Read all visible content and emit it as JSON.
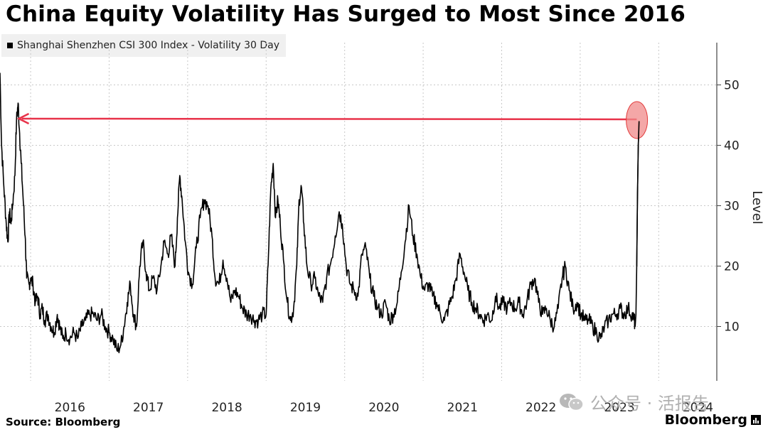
{
  "title": "China Equity Volatility Has Surged to Most Since 2016",
  "source": "Source: Bloomberg",
  "brand": "Bloomberg",
  "watermark": "公众号 · 活报告",
  "chart_data": {
    "type": "line",
    "title": "China Equity Volatility Has Surged to Most Since 2016",
    "ylabel": "Level",
    "ylim": [
      1,
      57
    ],
    "yticks": [
      10,
      20,
      30,
      40,
      50
    ],
    "xlim": [
      2015.61,
      2024.74
    ],
    "xticks": [
      "2016",
      "2017",
      "2018",
      "2019",
      "2020",
      "2021",
      "2022",
      "2023",
      "2024"
    ],
    "grid": true,
    "legend_position": "top-left",
    "series": [
      {
        "name": "Shanghai Shenzhen CSI 300 Index - Volatility 30 Day",
        "color": "#000000",
        "points": [
          [
            2015.61,
            52
          ],
          [
            2015.63,
            40
          ],
          [
            2015.66,
            33
          ],
          [
            2015.69,
            27
          ],
          [
            2015.71,
            24
          ],
          [
            2015.73,
            29
          ],
          [
            2015.75,
            27
          ],
          [
            2015.77,
            30
          ],
          [
            2015.8,
            35
          ],
          [
            2015.82,
            44
          ],
          [
            2015.84,
            47
          ],
          [
            2015.86,
            42
          ],
          [
            2015.88,
            37
          ],
          [
            2015.91,
            30
          ],
          [
            2015.93,
            25
          ],
          [
            2015.95,
            18
          ],
          [
            2015.98,
            17
          ],
          [
            2016.0,
            18
          ],
          [
            2016.03,
            17
          ],
          [
            2016.06,
            14
          ],
          [
            2016.09,
            15
          ],
          [
            2016.12,
            12
          ],
          [
            2016.15,
            13
          ],
          [
            2016.18,
            11
          ],
          [
            2016.22,
            12
          ],
          [
            2016.26,
            10
          ],
          [
            2016.3,
            9
          ],
          [
            2016.34,
            12
          ],
          [
            2016.37,
            10
          ],
          [
            2016.41,
            8
          ],
          [
            2016.45,
            9
          ],
          [
            2016.5,
            8
          ],
          [
            2016.55,
            9
          ],
          [
            2016.6,
            8
          ],
          [
            2016.65,
            10
          ],
          [
            2016.7,
            11
          ],
          [
            2016.75,
            12
          ],
          [
            2016.8,
            12
          ],
          [
            2016.85,
            11
          ],
          [
            2016.9,
            12
          ],
          [
            2016.95,
            10
          ],
          [
            2017.0,
            9
          ],
          [
            2017.05,
            8
          ],
          [
            2017.1,
            6
          ],
          [
            2017.15,
            7
          ],
          [
            2017.19,
            10
          ],
          [
            2017.23,
            14
          ],
          [
            2017.27,
            17
          ],
          [
            2017.31,
            12
          ],
          [
            2017.35,
            10
          ],
          [
            2017.39,
            20
          ],
          [
            2017.43,
            24
          ],
          [
            2017.47,
            19
          ],
          [
            2017.51,
            16
          ],
          [
            2017.56,
            18
          ],
          [
            2017.61,
            16
          ],
          [
            2017.66,
            20
          ],
          [
            2017.7,
            24
          ],
          [
            2017.75,
            22
          ],
          [
            2017.79,
            25
          ],
          [
            2017.84,
            20
          ],
          [
            2017.87,
            28
          ],
          [
            2017.9,
            35
          ],
          [
            2017.93,
            31
          ],
          [
            2017.97,
            24
          ],
          [
            2018.01,
            19
          ],
          [
            2018.06,
            17
          ],
          [
            2018.11,
            23
          ],
          [
            2018.16,
            28
          ],
          [
            2018.21,
            31
          ],
          [
            2018.26,
            30
          ],
          [
            2018.31,
            25
          ],
          [
            2018.35,
            18
          ],
          [
            2018.4,
            17
          ],
          [
            2018.45,
            21
          ],
          [
            2018.5,
            18
          ],
          [
            2018.55,
            14
          ],
          [
            2018.6,
            16
          ],
          [
            2018.65,
            15
          ],
          [
            2018.7,
            13
          ],
          [
            2018.75,
            12
          ],
          [
            2018.8,
            12
          ],
          [
            2018.85,
            11
          ],
          [
            2018.9,
            11
          ],
          [
            2018.95,
            12
          ],
          [
            2019.0,
            12
          ],
          [
            2019.03,
            22
          ],
          [
            2019.06,
            33
          ],
          [
            2019.09,
            37
          ],
          [
            2019.12,
            28
          ],
          [
            2019.15,
            31
          ],
          [
            2019.18,
            27
          ],
          [
            2019.22,
            21
          ],
          [
            2019.27,
            14
          ],
          [
            2019.31,
            11
          ],
          [
            2019.35,
            13
          ],
          [
            2019.39,
            20
          ],
          [
            2019.42,
            31
          ],
          [
            2019.45,
            33
          ],
          [
            2019.48,
            27
          ],
          [
            2019.52,
            20
          ],
          [
            2019.57,
            17
          ],
          [
            2019.62,
            18
          ],
          [
            2019.67,
            15
          ],
          [
            2019.72,
            14
          ],
          [
            2019.77,
            18
          ],
          [
            2019.83,
            21
          ],
          [
            2019.88,
            25
          ],
          [
            2019.93,
            29
          ],
          [
            2019.97,
            27
          ],
          [
            2020.02,
            20
          ],
          [
            2020.07,
            17
          ],
          [
            2020.12,
            16
          ],
          [
            2020.17,
            15
          ],
          [
            2020.22,
            22
          ],
          [
            2020.27,
            23
          ],
          [
            2020.32,
            18
          ],
          [
            2020.37,
            15
          ],
          [
            2020.42,
            13
          ],
          [
            2020.47,
            12
          ],
          [
            2020.52,
            14
          ],
          [
            2020.57,
            11
          ],
          [
            2020.62,
            12
          ],
          [
            2020.67,
            14
          ],
          [
            2020.72,
            19
          ],
          [
            2020.77,
            24
          ],
          [
            2020.82,
            30
          ],
          [
            2020.87,
            25
          ],
          [
            2020.92,
            22
          ],
          [
            2020.97,
            18
          ],
          [
            2021.02,
            16
          ],
          [
            2021.07,
            17
          ],
          [
            2021.12,
            15
          ],
          [
            2021.17,
            14
          ],
          [
            2021.22,
            12
          ],
          [
            2021.27,
            11
          ],
          [
            2021.32,
            13
          ],
          [
            2021.37,
            15
          ],
          [
            2021.42,
            18
          ],
          [
            2021.47,
            22
          ],
          [
            2021.52,
            19
          ],
          [
            2021.57,
            16
          ],
          [
            2021.62,
            14
          ],
          [
            2021.67,
            13
          ],
          [
            2021.72,
            12
          ],
          [
            2021.77,
            11
          ],
          [
            2021.82,
            12
          ],
          [
            2021.87,
            11
          ],
          [
            2021.92,
            15
          ],
          [
            2021.97,
            13
          ],
          [
            2022.02,
            14
          ],
          [
            2022.07,
            13
          ],
          [
            2022.12,
            14
          ],
          [
            2022.17,
            13
          ],
          [
            2022.22,
            14
          ],
          [
            2022.27,
            12
          ],
          [
            2022.32,
            14
          ],
          [
            2022.37,
            17
          ],
          [
            2022.42,
            18
          ],
          [
            2022.47,
            14
          ],
          [
            2022.52,
            12
          ],
          [
            2022.57,
            13
          ],
          [
            2022.62,
            11
          ],
          [
            2022.67,
            10
          ],
          [
            2022.72,
            13
          ],
          [
            2022.77,
            18
          ],
          [
            2022.81,
            20
          ],
          [
            2022.86,
            16
          ],
          [
            2022.91,
            13
          ],
          [
            2022.96,
            14
          ],
          [
            2023.01,
            12
          ],
          [
            2023.06,
            11
          ],
          [
            2023.11,
            11
          ],
          [
            2023.16,
            10
          ],
          [
            2023.21,
            9
          ],
          [
            2023.26,
            8
          ],
          [
            2023.31,
            10
          ],
          [
            2023.36,
            11
          ],
          [
            2023.41,
            12
          ],
          [
            2023.46,
            12
          ],
          [
            2023.51,
            13
          ],
          [
            2023.56,
            12
          ],
          [
            2023.61,
            13
          ],
          [
            2023.66,
            12
          ],
          [
            2023.69,
            11
          ],
          [
            2023.7,
            10
          ],
          [
            2023.71,
            12
          ],
          [
            2023.72,
            20
          ],
          [
            2023.73,
            32
          ],
          [
            2023.74,
            40
          ],
          [
            2023.75,
            44
          ]
        ]
      }
    ],
    "annotations": [
      {
        "type": "arrow",
        "from_x": 2023.72,
        "to_x": 2015.85,
        "y": 44.3,
        "color": "#e8334a"
      },
      {
        "type": "highlight-circle",
        "x": 2023.74,
        "y": 44.3,
        "color": "#f08a8a"
      }
    ]
  }
}
